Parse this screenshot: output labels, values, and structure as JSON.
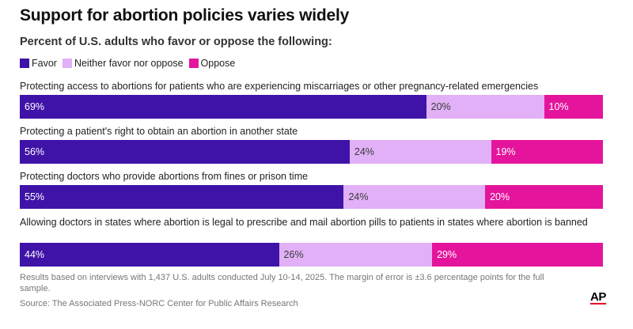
{
  "title": "Support for abortion policies varies widely",
  "subtitle": "Percent of U.S. adults who favor or oppose the following:",
  "legend": [
    {
      "label": "Favor",
      "color": "#3f13a8"
    },
    {
      "label": "Neither favor nor oppose",
      "color": "#e1b0f6"
    },
    {
      "label": "Oppose",
      "color": "#e4159c"
    }
  ],
  "notes": "Results based on interviews with 1,437 U.S. adults conducted July 10-14, 2025. The margin of error is ±3.6 percentage points for the full sample.",
  "source": "Source: The Associated Press-NORC Center for Public Affairs Research",
  "logo_text": "AP",
  "chart_data": {
    "type": "bar",
    "orientation": "horizontal",
    "stacked": true,
    "categories": [
      "Protecting access to abortions for patients who are experiencing miscarriages or other pregnancy-related emergencies",
      "Protecting a patient's right to obtain an abortion in another state",
      "Protecting doctors who provide abortions from fines or prison time",
      "Allowing doctors in states where abortion is legal to prescribe and mail abortion pills to patients in states where abortion is banned"
    ],
    "series": [
      {
        "name": "Favor",
        "color": "#3f13a8",
        "text_color": "#ffffff",
        "values": [
          69,
          56,
          55,
          44
        ]
      },
      {
        "name": "Neither favor nor oppose",
        "color": "#e1b0f6",
        "text_color": "#3a3a3a",
        "values": [
          20,
          24,
          24,
          26
        ]
      },
      {
        "name": "Oppose",
        "color": "#e4159c",
        "text_color": "#ffffff",
        "values": [
          10,
          19,
          20,
          29
        ]
      }
    ],
    "data_labels": [
      [
        "69%",
        "20%",
        "10%"
      ],
      [
        "56%",
        "24%",
        "19%"
      ],
      [
        "55%",
        "24%",
        "20%"
      ],
      [
        "44%",
        "26%",
        "29%"
      ]
    ],
    "xlim": [
      0,
      100
    ],
    "legend_position": "top-left",
    "grid": false
  }
}
